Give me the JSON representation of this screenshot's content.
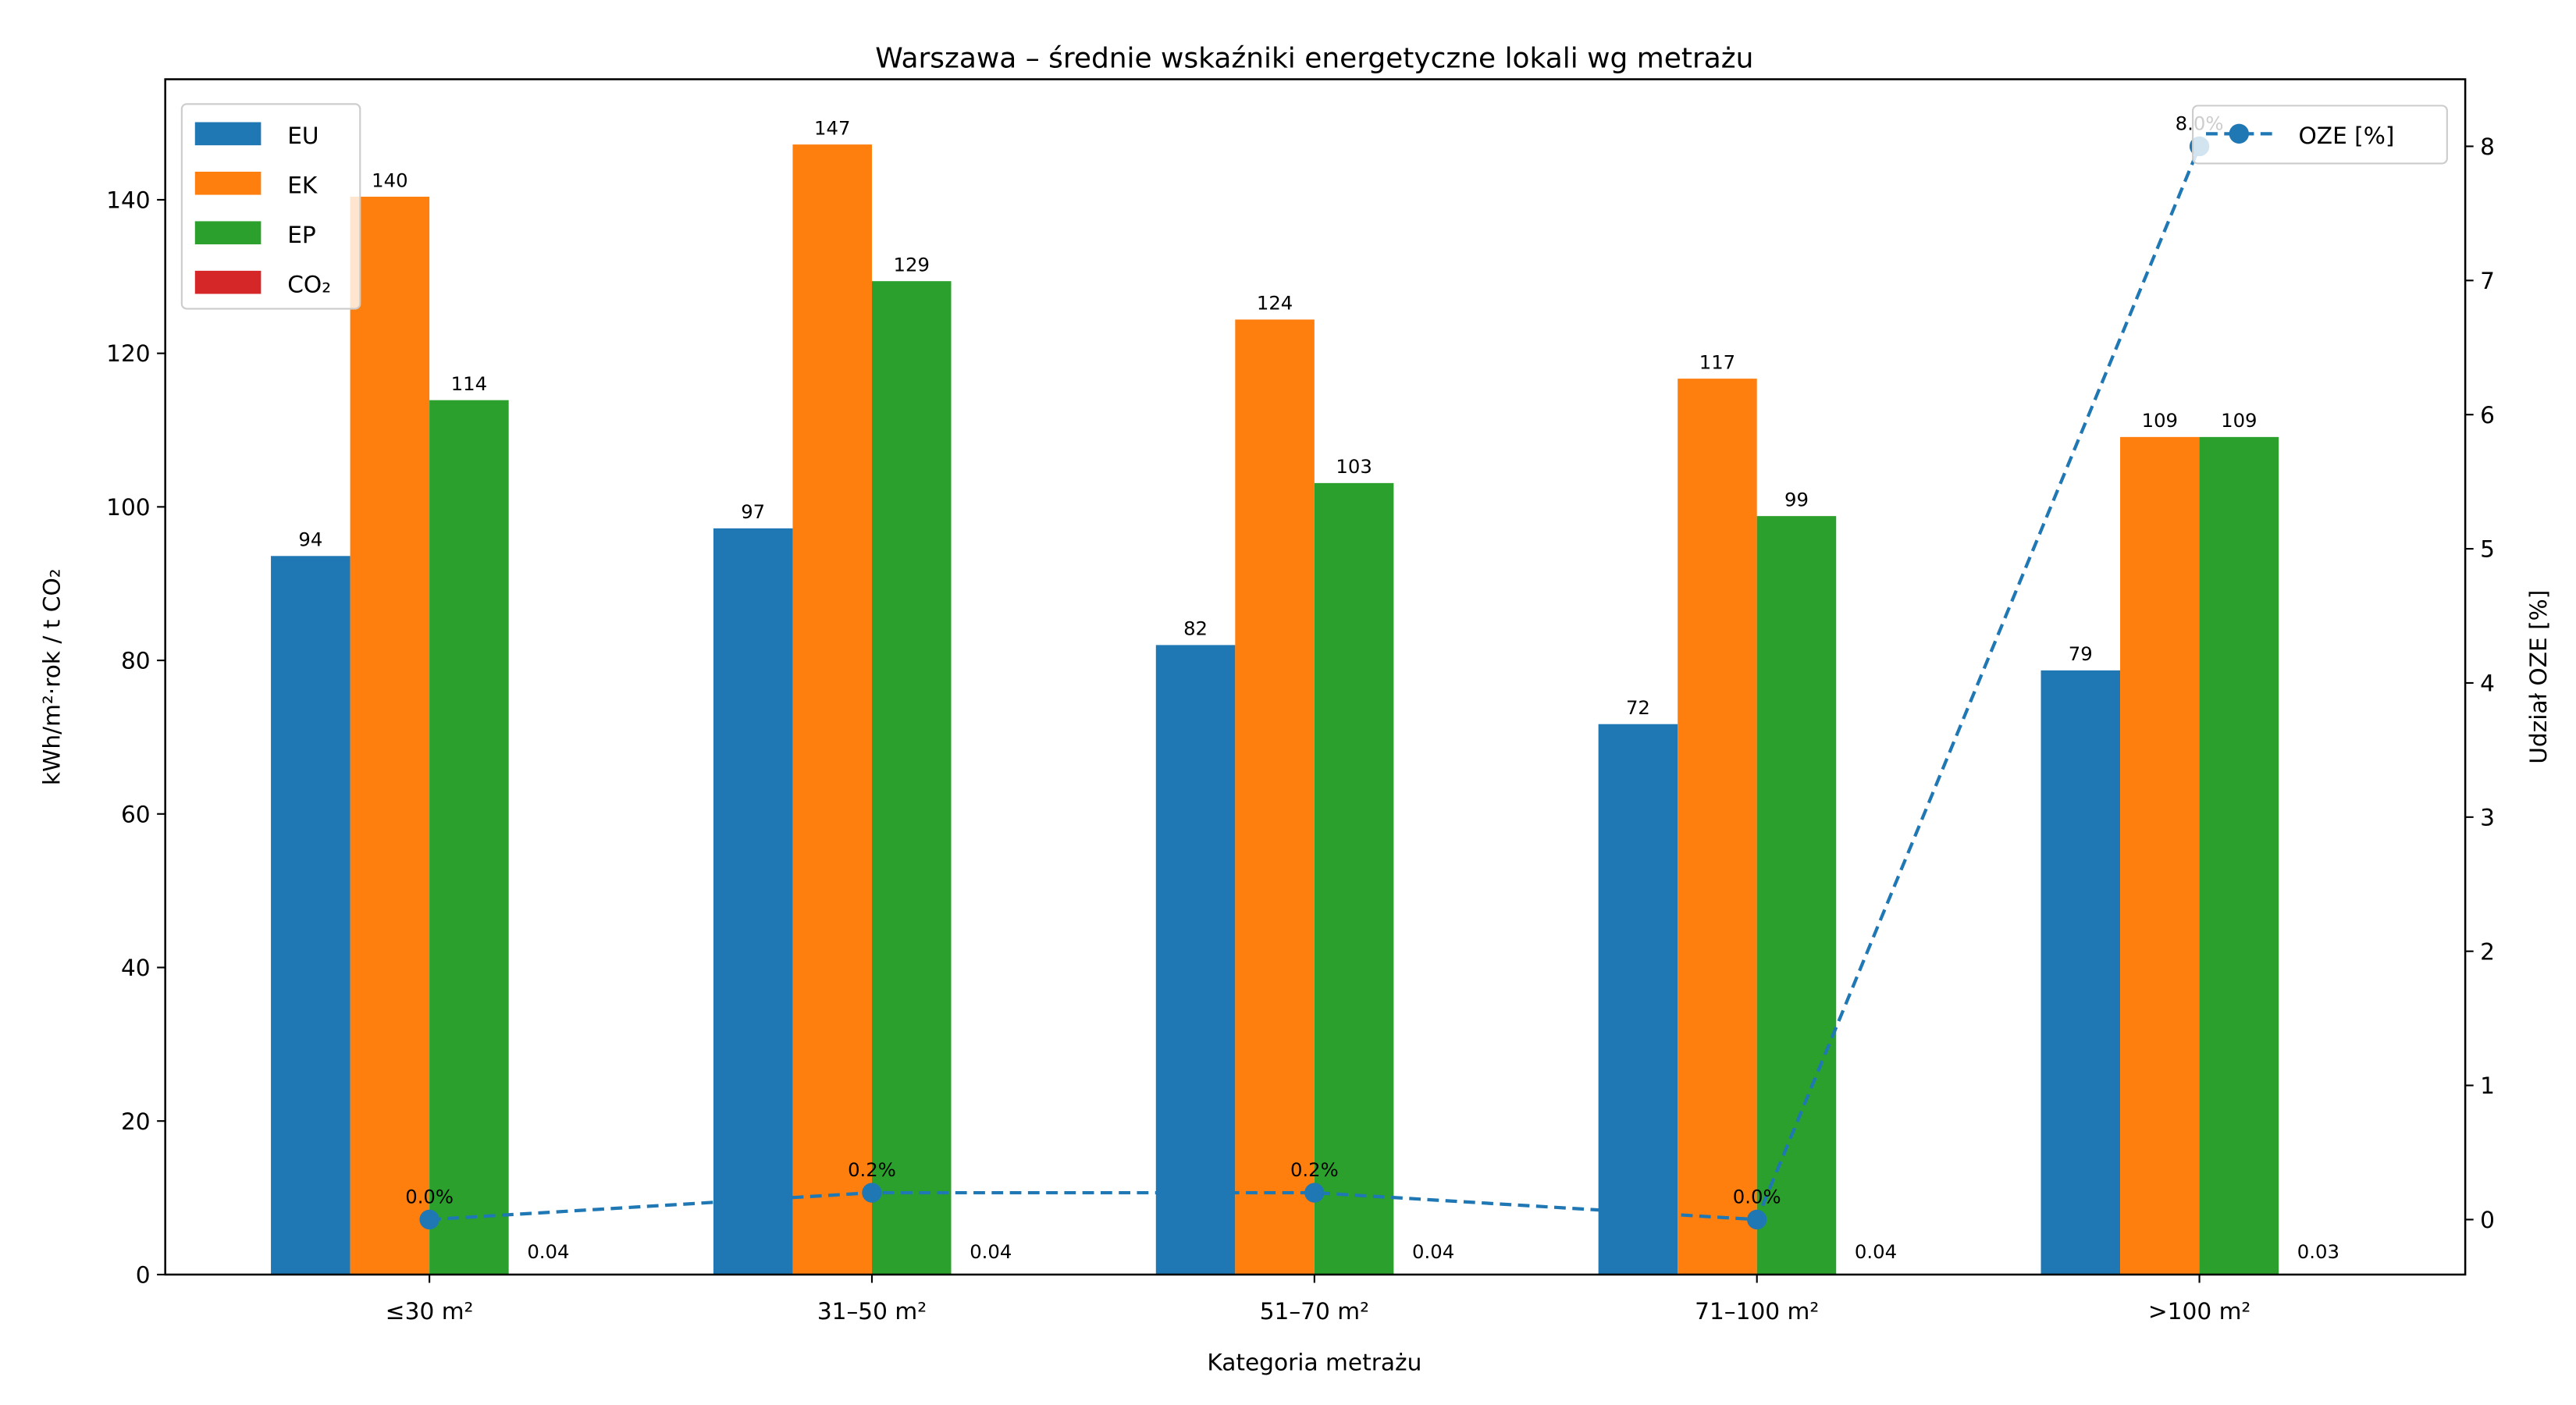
{
  "chart_data": {
    "type": "bar",
    "title": "Warszawa – średnie wskaźniki energetyczne lokali wg metrażu",
    "xlabel": "Kategoria metrażu",
    "ylabel": "kWh/m²·rok / t CO₂",
    "ylabel_right": "Udział OZE [%]",
    "categories": [
      "≤30 m²",
      "31–50 m²",
      "51–70 m²",
      "71–100 m²",
      ">100 m²"
    ],
    "ylim": [
      0,
      155.7
    ],
    "yticks": [
      0,
      20,
      40,
      60,
      80,
      100,
      120,
      140
    ],
    "ylim_right": [
      -0.41,
      8.5
    ],
    "yticks_right": [
      0,
      1,
      2,
      3,
      4,
      5,
      6,
      7,
      8
    ],
    "grid": false,
    "series": [
      {
        "name": "EU",
        "color": "#1f77b4",
        "values": [
          93.6,
          97.2,
          82.0,
          71.7,
          78.7
        ],
        "labels": [
          "94",
          "97",
          "82",
          "72",
          "79"
        ]
      },
      {
        "name": "EK",
        "color": "#ff7f0e",
        "values": [
          140.4,
          147.2,
          124.4,
          116.7,
          109.1
        ],
        "labels": [
          "140",
          "147",
          "124",
          "117",
          "109"
        ]
      },
      {
        "name": "EP",
        "color": "#2ca02c",
        "values": [
          113.9,
          129.4,
          103.1,
          98.8,
          109.1
        ],
        "labels": [
          "114",
          "129",
          "103",
          "99",
          "109"
        ]
      },
      {
        "name": "CO₂",
        "color": "#d62728",
        "values": [
          0.04,
          0.04,
          0.04,
          0.04,
          0.03
        ],
        "labels": [
          "0.04",
          "0.04",
          "0.04",
          "0.04",
          "0.03"
        ]
      }
    ],
    "line_series": {
      "name": "OZE [%]",
      "color": "#1f77b4",
      "style": "dashed",
      "marker": "circle",
      "axis": "right",
      "values": [
        0.0,
        0.2,
        0.2,
        0.0,
        8.0
      ],
      "labels": [
        "0.0%",
        "0.2%",
        "0.2%",
        "0.0%",
        "8.0%"
      ]
    },
    "legend_placement": "upper-left",
    "legend_right_placement": "upper-right"
  }
}
